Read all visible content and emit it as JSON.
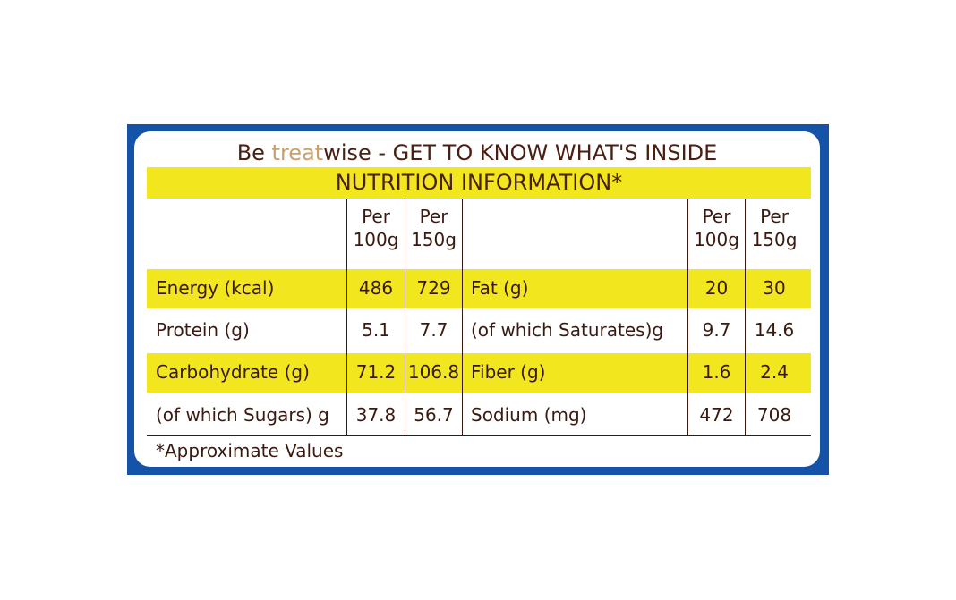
{
  "title": {
    "prefix": "Be ",
    "highlight": "treat",
    "suffix": "wise - GET TO KNOW WHAT'S INSIDE"
  },
  "banner": "NUTRITION INFORMATION*",
  "headers": {
    "left_100": [
      "Per",
      "100g"
    ],
    "left_150": [
      "Per",
      "150g"
    ],
    "right_100": [
      "Per",
      "100g"
    ],
    "right_150": [
      "Per",
      "150g"
    ]
  },
  "rows": [
    {
      "left_label": "Energy (kcal)",
      "left_100": "486",
      "left_150": "729",
      "right_label": "Fat (g)",
      "right_100": "20",
      "right_150": "30"
    },
    {
      "left_label": "Protein (g)",
      "left_100": "5.1",
      "left_150": "7.7",
      "right_label": "(of which Saturates)g",
      "right_100": "9.7",
      "right_150": "14.6"
    },
    {
      "left_label": "Carbohydrate (g)",
      "left_100": "71.2",
      "left_150": "106.8",
      "right_label": "Fiber (g)",
      "right_100": "1.6",
      "right_150": "2.4"
    },
    {
      "left_label": "(of which Sugars) g",
      "left_100": "37.8",
      "left_150": "56.7",
      "right_label": "Sodium (mg)",
      "right_100": "472",
      "right_150": "708"
    }
  ],
  "footnote": "*Approximate Values",
  "colors": {
    "frame": "#1453a8",
    "highlight": "#f2e61f",
    "text": "#3a1a10",
    "accent": "#c9a06a"
  }
}
